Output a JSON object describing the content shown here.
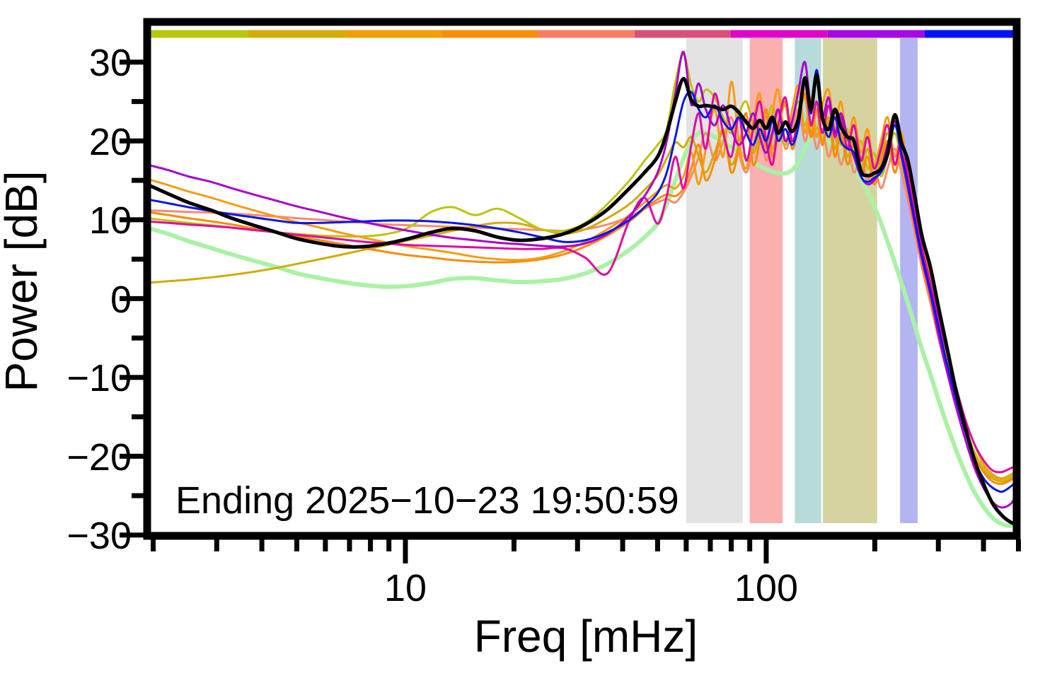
{
  "figure": {
    "background": "#ffffff",
    "frame_color": "#000000"
  },
  "chart_data": {
    "type": "line",
    "title": "",
    "xlabel": "Freq [mHz]",
    "ylabel": "Power [dB]",
    "annotation": "Ending 2025−10−23 19:50:59",
    "x_scale": "log",
    "xlim": [
      1.92,
      494
    ],
    "ylim": [
      -30.1,
      35.1
    ],
    "grid": false,
    "legend": "none",
    "x_major_ticks": [
      10,
      100
    ],
    "x_major_tick_labels": [
      "10",
      "100"
    ],
    "x_minor_ticks": [
      2,
      3,
      4,
      5,
      6,
      7,
      8,
      9,
      20,
      30,
      40,
      50,
      60,
      70,
      80,
      90,
      200,
      300,
      400,
      500
    ],
    "y_major_ticks": [
      30,
      20,
      10,
      0,
      -10,
      -20,
      -30
    ],
    "y_major_tick_labels": [
      "30",
      "20",
      "10",
      "0",
      "−10",
      "−20",
      "−30"
    ],
    "y_minor_ticks": [
      25,
      15,
      5,
      -5,
      -15,
      -25
    ],
    "top_frequency_band_bar": [
      {
        "f1": 1.92,
        "f2": 3.67,
        "color": "#b8c708"
      },
      {
        "f1": 3.67,
        "f2": 6.84,
        "color": "#d4ac04"
      },
      {
        "f1": 6.84,
        "f2": 12.6,
        "color": "#f0a001"
      },
      {
        "f1": 12.6,
        "f2": 23.3,
        "color": "#fb8e01"
      },
      {
        "f1": 23.3,
        "f2": 43.2,
        "color": "#fa7d62"
      },
      {
        "f1": 43.2,
        "f2": 79.8,
        "color": "#d94f79"
      },
      {
        "f1": 79.8,
        "f2": 148.0,
        "color": "#e203c8"
      },
      {
        "f1": 148.0,
        "f2": 274.8,
        "color": "#a50ae6"
      },
      {
        "f1": 274.8,
        "f2": 494.0,
        "color": "#0513fc"
      }
    ],
    "shaded_bands": [
      {
        "f1": 60.0,
        "f2": 86.0,
        "color": "#e3e3e3"
      },
      {
        "f1": 90.0,
        "f2": 111.0,
        "color": "#fbb0b0"
      },
      {
        "f1": 120.0,
        "f2": 142.0,
        "color": "#b7dbd9"
      },
      {
        "f1": 143.5,
        "f2": 203.0,
        "color": "#d7d3a0"
      },
      {
        "f1": 235.0,
        "f2": 263.0,
        "color": "#b4b4f2"
      }
    ],
    "x_mHz": [
      1.92,
      2.2,
      2.5,
      2.9,
      3.3,
      3.8,
      4.4,
      5.0,
      5.8,
      6.7,
      7.7,
      8.9,
      10.2,
      11.8,
      13.5,
      15.6,
      18,
      20.7,
      23.8,
      27.4,
      31.5,
      36.3,
      41.8,
      46,
      50,
      53,
      56,
      59,
      62,
      65,
      68,
      72,
      76,
      80,
      84,
      88,
      92,
      96,
      100,
      104,
      108,
      113,
      118,
      123,
      128,
      133,
      138,
      143,
      149,
      155,
      161,
      168,
      175,
      183,
      191,
      199,
      208,
      217,
      227,
      237,
      247,
      258,
      270,
      285,
      300,
      318,
      337,
      357,
      378,
      400,
      424,
      450,
      477,
      494
    ],
    "series": [
      {
        "name": "pale-green",
        "color": "#a9f2a4",
        "width": 6,
        "values": [
          9.0,
          8.2,
          7.3,
          6.4,
          5.6,
          4.8,
          4.0,
          3.2,
          2.6,
          2.1,
          1.7,
          1.5,
          1.6,
          2.0,
          2.5,
          2.6,
          2.3,
          2.1,
          2.2,
          2.5,
          3.2,
          4.4,
          6.2,
          7.8,
          9.5,
          12.0,
          15.0,
          17.8,
          20.0,
          21.0,
          21.0,
          20.5,
          19.8,
          19.2,
          18.6,
          18.0,
          17.4,
          16.8,
          16.4,
          16.1,
          15.9,
          15.9,
          16.3,
          17.4,
          19.0,
          20.4,
          20.8,
          20.5,
          19.8,
          18.6,
          18.0,
          17.3,
          16.4,
          15.2,
          13.6,
          11.8,
          9.6,
          7.2,
          4.6,
          2.0,
          -0.6,
          -3.4,
          -6.4,
          -9.6,
          -12.8,
          -16.2,
          -19.4,
          -22.2,
          -24.6,
          -26.4,
          -27.8,
          -28.6,
          -28.8,
          -28.2
        ]
      },
      {
        "name": "salmon",
        "color": "#f98a70",
        "width": 3,
        "values": [
          11.2,
          11.1,
          11.0,
          10.9,
          10.8,
          10.6,
          10.4,
          10.2,
          10.0,
          9.8,
          9.6,
          9.4,
          9.3,
          9.2,
          9.1,
          9.0,
          8.9,
          8.8,
          8.7,
          8.6,
          8.8,
          9.4,
          10.4,
          11.4,
          12.2,
          12.6,
          12.2,
          13.5,
          15.5,
          18.0,
          21.0,
          17.5,
          20.0,
          23.0,
          18.5,
          16.0,
          19.0,
          22.0,
          17.5,
          20.5,
          23.5,
          19.0,
          21.5,
          24.0,
          20.0,
          22.5,
          19.0,
          21.5,
          18.0,
          20.5,
          17.0,
          19.5,
          16.0,
          18.0,
          15.0,
          17.0,
          14.0,
          16.5,
          19.0,
          16.0,
          12.5,
          8.5,
          4.0,
          -0.5,
          -5.0,
          -9.5,
          -13.5,
          -17.0,
          -19.8,
          -21.8,
          -22.8,
          -23.0,
          -22.5,
          -22.0
        ]
      },
      {
        "name": "gold",
        "color": "#d2ab05",
        "width": 3,
        "values": [
          2.0,
          2.2,
          2.4,
          2.7,
          3.0,
          3.4,
          3.9,
          4.4,
          5.0,
          5.6,
          6.2,
          6.8,
          7.4,
          8.0,
          8.6,
          9.2,
          9.6,
          9.5,
          8.8,
          8.2,
          8.8,
          10.2,
          12.0,
          13.8,
          15.6,
          17.8,
          19.8,
          19.2,
          20.5,
          18.0,
          16.0,
          18.5,
          21.0,
          17.0,
          19.5,
          22.5,
          18.5,
          21.0,
          23.0,
          19.0,
          22.0,
          24.5,
          20.0,
          23.0,
          25.5,
          21.0,
          24.0,
          20.0,
          23.0,
          19.0,
          22.0,
          18.0,
          20.5,
          16.5,
          19.0,
          15.5,
          18.0,
          21.0,
          17.0,
          19.5,
          14.5,
          10.0,
          5.5,
          1.0,
          -3.5,
          -8.0,
          -12.5,
          -16.5,
          -19.5,
          -21.5,
          -22.8,
          -23.2,
          -22.8,
          -22.2
        ]
      },
      {
        "name": "olive",
        "color": "#bcc40c",
        "width": 3,
        "values": [
          10.2,
          9.9,
          9.6,
          9.3,
          9.0,
          8.7,
          8.4,
          8.2,
          8.0,
          7.9,
          7.9,
          8.2,
          9.0,
          11.0,
          11.6,
          10.6,
          11.4,
          10.2,
          8.8,
          8.6,
          9.6,
          12.0,
          15.0,
          17.5,
          19.5,
          21.5,
          27.5,
          31.0,
          27.0,
          25.0,
          26.5,
          25.5,
          23.0,
          21.0,
          23.5,
          25.0,
          22.0,
          20.0,
          22.0,
          24.5,
          21.5,
          19.5,
          22.5,
          25.0,
          22.0,
          24.5,
          21.5,
          23.5,
          20.5,
          23.0,
          19.5,
          21.5,
          18.0,
          20.0,
          16.5,
          18.5,
          15.5,
          18.0,
          21.0,
          17.5,
          13.5,
          9.5,
          5.0,
          0.5,
          -4.0,
          -8.5,
          -13.0,
          -16.5,
          -19.5,
          -21.5,
          -22.5,
          -23.0,
          -22.6,
          -22.0
        ]
      },
      {
        "name": "dark-orange",
        "color": "#fb8b05",
        "width": 3,
        "values": [
          11.0,
          10.6,
          10.2,
          9.8,
          9.4,
          8.9,
          8.4,
          7.9,
          7.4,
          6.9,
          6.4,
          5.9,
          5.5,
          5.2,
          4.9,
          4.7,
          4.6,
          4.7,
          5.0,
          5.6,
          6.6,
          8.0,
          9.8,
          11.4,
          12.6,
          13.2,
          13.0,
          14.0,
          16.5,
          19.5,
          15.0,
          17.5,
          21.5,
          16.0,
          19.0,
          23.5,
          17.0,
          20.0,
          24.0,
          18.0,
          21.0,
          25.0,
          19.0,
          22.5,
          26.0,
          20.5,
          24.0,
          19.5,
          22.5,
          18.0,
          21.0,
          17.0,
          19.5,
          15.5,
          18.0,
          14.5,
          17.0,
          20.0,
          16.0,
          18.5,
          13.5,
          9.0,
          4.5,
          0.0,
          -4.5,
          -9.0,
          -13.5,
          -17.0,
          -20.0,
          -22.0,
          -23.2,
          -23.5,
          -23.0,
          -22.5
        ]
      },
      {
        "name": "orange",
        "color": "#f79c14",
        "width": 3,
        "values": [
          15.2,
          14.4,
          13.6,
          12.8,
          12.0,
          11.2,
          10.4,
          9.7,
          9.0,
          8.3,
          7.7,
          7.1,
          6.6,
          6.2,
          5.8,
          5.3,
          5.0,
          4.9,
          5.2,
          6.0,
          7.2,
          8.8,
          10.6,
          12.2,
          13.6,
          14.4,
          14.0,
          15.5,
          18.5,
          14.5,
          19.0,
          24.0,
          18.0,
          27.5,
          20.0,
          16.5,
          22.0,
          26.0,
          19.0,
          23.5,
          26.5,
          20.0,
          24.0,
          27.0,
          21.0,
          25.5,
          20.5,
          24.5,
          26.5,
          21.5,
          25.0,
          20.0,
          23.0,
          18.5,
          21.5,
          17.0,
          20.0,
          23.0,
          18.0,
          21.0,
          16.0,
          11.5,
          7.0,
          2.5,
          -2.0,
          -7.0,
          -11.5,
          -15.5,
          -18.5,
          -21.0,
          -22.3,
          -22.8,
          -22.3,
          -21.8
        ]
      },
      {
        "name": "magenta",
        "color": "#e00a9e",
        "width": 3,
        "values": [
          9.8,
          9.6,
          9.4,
          9.2,
          9.0,
          8.7,
          8.4,
          8.1,
          7.8,
          7.5,
          7.2,
          7.0,
          6.8,
          6.7,
          6.6,
          6.5,
          6.4,
          6.3,
          6.3,
          6.4,
          5.2,
          3.2,
          10.0,
          12.8,
          9.5,
          13.0,
          18.0,
          14.0,
          19.5,
          23.5,
          19.0,
          26.0,
          21.0,
          18.0,
          23.0,
          17.5,
          21.5,
          25.0,
          20.0,
          17.0,
          22.0,
          25.5,
          20.0,
          23.5,
          27.5,
          22.0,
          25.0,
          21.0,
          24.5,
          20.5,
          23.0,
          19.0,
          22.0,
          17.5,
          20.5,
          16.5,
          19.0,
          22.0,
          17.0,
          20.0,
          15.5,
          11.0,
          6.5,
          2.0,
          -2.5,
          -7.0,
          -11.5,
          -15.5,
          -18.5,
          -20.5,
          -21.8,
          -22.0,
          -21.5,
          -21.2
        ]
      },
      {
        "name": "purple",
        "color": "#a802ce",
        "width": 3,
        "values": [
          17.0,
          16.3,
          15.5,
          14.8,
          14.0,
          13.2,
          12.4,
          11.7,
          11.0,
          10.3,
          9.7,
          9.1,
          8.6,
          8.1,
          7.7,
          7.4,
          7.1,
          6.9,
          6.7,
          6.6,
          7.0,
          8.2,
          10.5,
          13.0,
          16.0,
          20.0,
          26.0,
          31.3,
          24.6,
          27.3,
          24.0,
          22.0,
          24.5,
          21.5,
          19.5,
          21.0,
          23.5,
          20.5,
          18.5,
          21.0,
          24.0,
          20.0,
          22.5,
          26.5,
          30.0,
          24.5,
          28.0,
          23.0,
          25.5,
          21.0,
          23.5,
          20.5,
          18.0,
          15.5,
          14.5,
          15.0,
          16.5,
          19.5,
          22.5,
          18.0,
          14.0,
          9.5,
          5.0,
          0.5,
          -4.5,
          -9.5,
          -14.0,
          -18.0,
          -21.5,
          -24.0,
          -25.8,
          -26.5,
          -26.0,
          -24.8
        ]
      },
      {
        "name": "blue",
        "color": "#0b16e8",
        "width": 3,
        "values": [
          12.6,
          12.1,
          11.6,
          11.1,
          10.7,
          10.3,
          9.9,
          9.6,
          9.6,
          9.7,
          9.8,
          9.9,
          9.9,
          9.8,
          9.6,
          9.3,
          8.9,
          8.4,
          7.8,
          7.2,
          7.4,
          8.4,
          10.0,
          11.6,
          13.4,
          16.0,
          20.5,
          25.0,
          26.2,
          24.0,
          23.0,
          24.5,
          22.5,
          21.5,
          23.0,
          21.0,
          19.5,
          21.5,
          20.0,
          22.5,
          20.0,
          21.5,
          19.5,
          22.0,
          27.5,
          23.5,
          29.0,
          23.0,
          20.5,
          23.0,
          20.0,
          19.0,
          18.5,
          15.5,
          14.8,
          15.3,
          16.0,
          18.0,
          22.0,
          18.5,
          14.5,
          10.0,
          5.5,
          1.0,
          -3.5,
          -8.5,
          -13.0,
          -17.0,
          -20.5,
          -22.8,
          -24.0,
          -24.5,
          -23.8,
          -23.2
        ]
      },
      {
        "name": "black",
        "color": "#000000",
        "width": 5,
        "values": [
          14.5,
          13.3,
          12.2,
          11.2,
          10.2,
          9.3,
          8.4,
          7.6,
          7.0,
          6.6,
          6.6,
          7.0,
          7.6,
          8.4,
          8.9,
          8.6,
          7.8,
          7.4,
          7.6,
          8.2,
          9.4,
          11.3,
          14.0,
          16.0,
          18.0,
          21.0,
          25.0,
          27.9,
          25.2,
          24.4,
          24.5,
          24.3,
          24.0,
          24.4,
          23.6,
          22.4,
          21.6,
          22.6,
          21.6,
          23.0,
          21.0,
          22.4,
          21.2,
          23.0,
          28.0,
          24.0,
          28.4,
          23.0,
          21.5,
          24.0,
          21.8,
          20.5,
          20.0,
          16.2,
          15.6,
          15.9,
          16.5,
          18.5,
          23.3,
          19.8,
          17.5,
          13.0,
          8.0,
          4.0,
          -1.0,
          -6.5,
          -12.0,
          -16.5,
          -20.5,
          -23.5,
          -26.0,
          -27.5,
          -28.4,
          -28.6
        ]
      }
    ]
  }
}
